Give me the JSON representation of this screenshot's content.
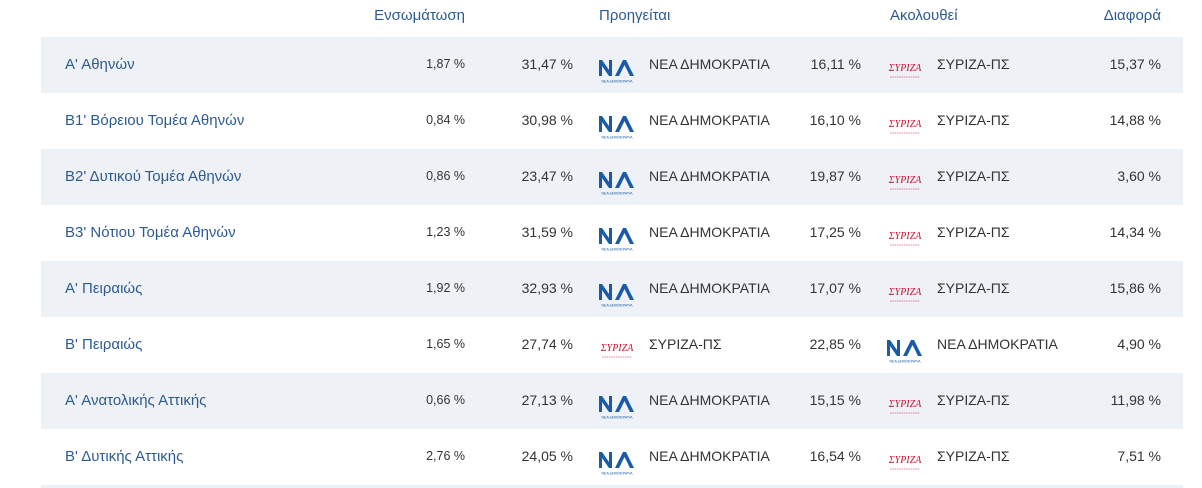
{
  "headers": {
    "turnout": "Ενσωμάτωση",
    "leading": "Προηγείται",
    "following": "Ακολουθεί",
    "difference": "Διαφορά"
  },
  "parties": {
    "nd": {
      "name": "ΝΕΑ ΔΗΜΟΚΡΑΤΙΑ",
      "logo_text": "ΝΕΑ ΔΗΜΟΚΡΑΤΙΑ",
      "color": "#1a5aa8"
    },
    "syriza": {
      "name": "ΣΥΡΙΖΑ-ΠΣ",
      "logo_text": "ΣΥΡΙΖΑ",
      "color": "#c8102e"
    }
  },
  "rows": [
    {
      "name": "Α' Αθηνών",
      "turnout": "1,87 %",
      "leading_pct": "31,47 %",
      "leading_party": "ΝΕΑ ΔΗΜΟΚΡΑΤΙΑ",
      "leading_logo": "nd",
      "following_pct": "16,11 %",
      "following_party": "ΣΥΡΙΖΑ-ΠΣ",
      "following_logo": "syriza",
      "difference": "15,37 %"
    },
    {
      "name": "Β1' Βόρειου Τομέα Αθηνών",
      "turnout": "0,84 %",
      "leading_pct": "30,98 %",
      "leading_party": "ΝΕΑ ΔΗΜΟΚΡΑΤΙΑ",
      "leading_logo": "nd",
      "following_pct": "16,10 %",
      "following_party": "ΣΥΡΙΖΑ-ΠΣ",
      "following_logo": "syriza",
      "difference": "14,88 %"
    },
    {
      "name": "Β2' Δυτικού Τομέα Αθηνών",
      "turnout": "0,86 %",
      "leading_pct": "23,47 %",
      "leading_party": "ΝΕΑ ΔΗΜΟΚΡΑΤΙΑ",
      "leading_logo": "nd",
      "following_pct": "19,87 %",
      "following_party": "ΣΥΡΙΖΑ-ΠΣ",
      "following_logo": "syriza",
      "difference": "3,60 %"
    },
    {
      "name": "Β3' Νότιου Τομέα Αθηνών",
      "turnout": "1,23 %",
      "leading_pct": "31,59 %",
      "leading_party": "ΝΕΑ ΔΗΜΟΚΡΑΤΙΑ",
      "leading_logo": "nd",
      "following_pct": "17,25 %",
      "following_party": "ΣΥΡΙΖΑ-ΠΣ",
      "following_logo": "syriza",
      "difference": "14,34 %"
    },
    {
      "name": "Α' Πειραιώς",
      "turnout": "1,92 %",
      "leading_pct": "32,93 %",
      "leading_party": "ΝΕΑ ΔΗΜΟΚΡΑΤΙΑ",
      "leading_logo": "nd",
      "following_pct": "17,07 %",
      "following_party": "ΣΥΡΙΖΑ-ΠΣ",
      "following_logo": "syriza",
      "difference": "15,86 %"
    },
    {
      "name": "Β' Πειραιώς",
      "turnout": "1,65 %",
      "leading_pct": "27,74 %",
      "leading_party": "ΣΥΡΙΖΑ-ΠΣ",
      "leading_logo": "syriza",
      "following_pct": "22,85 %",
      "following_party": "ΝΕΑ ΔΗΜΟΚΡΑΤΙΑ",
      "following_logo": "nd",
      "difference": "4,90 %"
    },
    {
      "name": "Α' Ανατολικής Αττικής",
      "turnout": "0,66 %",
      "leading_pct": "27,13 %",
      "leading_party": "ΝΕΑ ΔΗΜΟΚΡΑΤΙΑ",
      "leading_logo": "nd",
      "following_pct": "15,15 %",
      "following_party": "ΣΥΡΙΖΑ-ΠΣ",
      "following_logo": "syriza",
      "difference": "11,98 %"
    },
    {
      "name": "Β' Δυτικής Αττικής",
      "turnout": "2,76 %",
      "leading_pct": "24,05 %",
      "leading_party": "ΝΕΑ ΔΗΜΟΚΡΑΤΙΑ",
      "leading_logo": "nd",
      "following_pct": "16,54 %",
      "following_party": "ΣΥΡΙΖΑ-ΠΣ",
      "following_logo": "syriza",
      "difference": "7,51 %"
    }
  ]
}
